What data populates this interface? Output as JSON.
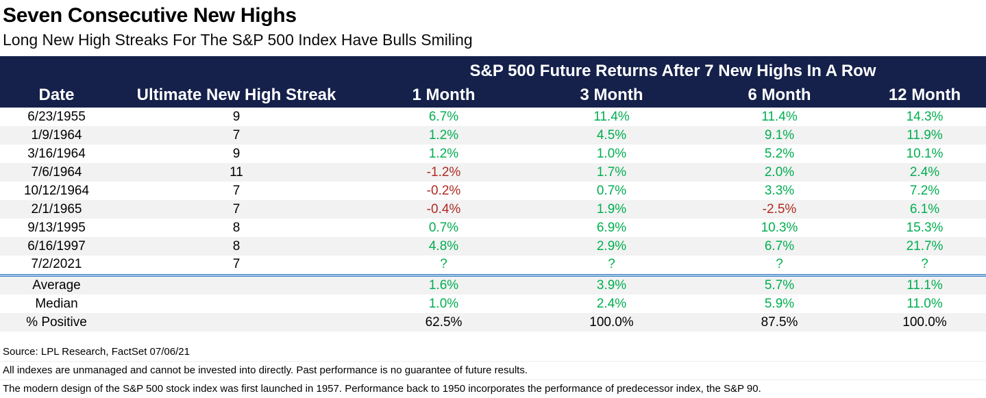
{
  "header": {
    "title": "Seven Consecutive New Highs",
    "subtitle": "Long New High Streaks For The S&P 500 Index Have Bulls Smiling"
  },
  "table": {
    "group_header": "S&P 500 Future Returns After 7 New Highs In A Row",
    "columns": [
      "Date",
      "Ultimate New High Streak",
      "1 Month",
      "3 Month",
      "6 Month",
      "12 Month"
    ],
    "rows": [
      [
        "6/23/1955",
        "9",
        "6.7%",
        "11.4%",
        "11.4%",
        "14.3%"
      ],
      [
        "1/9/1964",
        "7",
        "1.2%",
        "4.5%",
        "9.1%",
        "11.9%"
      ],
      [
        "3/16/1964",
        "9",
        "1.2%",
        "1.0%",
        "5.2%",
        "10.1%"
      ],
      [
        "7/6/1964",
        "11",
        "-1.2%",
        "1.7%",
        "2.0%",
        "2.4%"
      ],
      [
        "10/12/1964",
        "7",
        "-0.2%",
        "0.7%",
        "3.3%",
        "7.2%"
      ],
      [
        "2/1/1965",
        "7",
        "-0.4%",
        "1.9%",
        "-2.5%",
        "6.1%"
      ],
      [
        "9/13/1995",
        "8",
        "0.7%",
        "6.9%",
        "10.3%",
        "15.3%"
      ],
      [
        "6/16/1997",
        "8",
        "4.8%",
        "2.9%",
        "6.7%",
        "21.7%"
      ],
      [
        "7/2/2021",
        "7",
        "?",
        "?",
        "?",
        "?"
      ]
    ],
    "summary_rows": [
      {
        "label": "Average",
        "values": [
          "1.6%",
          "3.9%",
          "5.7%",
          "11.1%"
        ],
        "value_style": "positive"
      },
      {
        "label": "Median",
        "values": [
          "1.0%",
          "2.4%",
          "5.9%",
          "11.0%"
        ],
        "value_style": "positive"
      },
      {
        "label": "% Positive",
        "values": [
          "62.5%",
          "100.0%",
          "87.5%",
          "100.0%"
        ],
        "value_style": "plain"
      }
    ]
  },
  "footer": {
    "lines": [
      "Source: LPL Research, FactSet 07/06/21",
      "All indexes are unmanaged and cannot be invested into directly. Past performance is no guarantee of future results.",
      "The modern design of the S&P 500 stock index was first launched in 1957. Performance back to 1950 incorporates the performance of predecessor index, the S&P 90."
    ]
  },
  "colors": {
    "header_bg": "#15214B",
    "positive_green": "#00AE50",
    "negative_red": "#AE2A21",
    "row_stripe": "#F2F2F2",
    "divider_blue": "#9CC3EA",
    "divider_blue_edge": "#4A86C6"
  },
  "chart_data": {
    "type": "table",
    "title": "Seven Consecutive New Highs",
    "subtitle": "Long New High Streaks For The S&P 500 Index Have Bulls Smiling",
    "group_header": "S&P 500 Future Returns After 7 New Highs In A Row",
    "columns": [
      "Date",
      "Ultimate New High Streak",
      "1 Month",
      "3 Month",
      "6 Month",
      "12 Month"
    ],
    "rows": [
      [
        "6/23/1955",
        9,
        6.7,
        11.4,
        11.4,
        14.3
      ],
      [
        "1/9/1964",
        7,
        1.2,
        4.5,
        9.1,
        11.9
      ],
      [
        "3/16/1964",
        9,
        1.2,
        1.0,
        5.2,
        10.1
      ],
      [
        "7/6/1964",
        11,
        -1.2,
        1.7,
        2.0,
        2.4
      ],
      [
        "10/12/1964",
        7,
        -0.2,
        0.7,
        3.3,
        7.2
      ],
      [
        "2/1/1965",
        7,
        -0.4,
        1.9,
        -2.5,
        6.1
      ],
      [
        "9/13/1995",
        8,
        0.7,
        6.9,
        10.3,
        15.3
      ],
      [
        "6/16/1997",
        8,
        4.8,
        2.9,
        6.7,
        21.7
      ],
      [
        "7/2/2021",
        7,
        null,
        null,
        null,
        null
      ]
    ],
    "summary": {
      "Average": [
        1.6,
        3.9,
        5.7,
        11.1
      ],
      "Median": [
        1.0,
        2.4,
        5.9,
        11.0
      ],
      "% Positive": [
        62.5,
        100.0,
        87.5,
        100.0
      ]
    },
    "units": "percent"
  }
}
